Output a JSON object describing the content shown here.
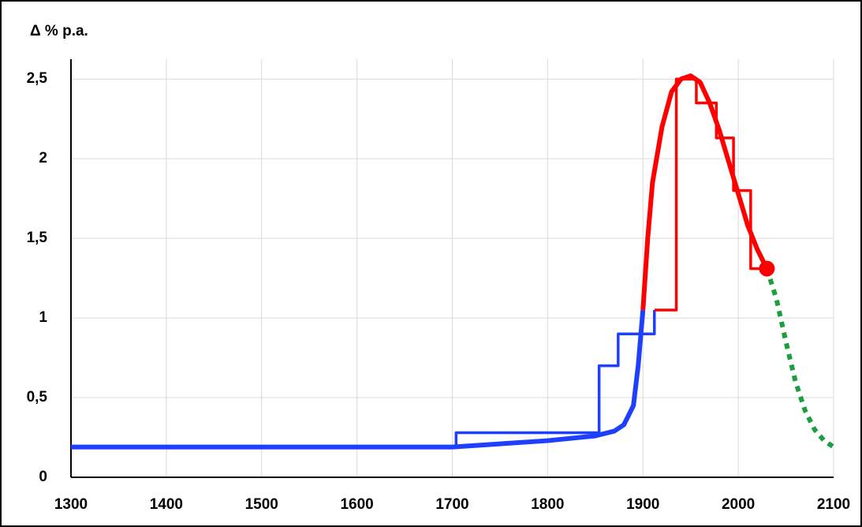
{
  "chart_data": {
    "type": "line",
    "ylabel": "Δ % p.a.",
    "xlim": [
      1300,
      2100
    ],
    "xticks": [
      1300,
      1400,
      1500,
      1600,
      1700,
      1800,
      1900,
      2000,
      2100
    ],
    "ylim": [
      0,
      2.6
    ],
    "yticks": [
      0,
      {
        "value": 0.5,
        "label": "0,5"
      },
      1,
      {
        "value": 1.5,
        "label": "1,5"
      },
      2,
      {
        "value": 2.5,
        "label": "2,5"
      }
    ],
    "grid": true,
    "series": [
      {
        "color": "#1f3fff",
        "x": [
          1300,
          1700,
          1750,
          1800,
          1850,
          1870,
          1880,
          1890,
          1895,
          1900
        ],
        "values": [
          0.19,
          0.19,
          0.21,
          0.23,
          0.26,
          0.29,
          0.33,
          0.45,
          0.7,
          1.05
        ]
      },
      {
        "color": "#1f3fff",
        "x": [
          1300,
          1704,
          1704,
          1854,
          1854,
          1874,
          1874,
          1912,
          1912
        ],
        "values": [
          0.19,
          0.19,
          0.28,
          0.28,
          0.7,
          0.7,
          0.9,
          0.9,
          1.05
        ]
      },
      {
        "color": "#ff0000",
        "x": [
          1912,
          1935,
          1935,
          1956,
          1956,
          1977,
          1977,
          1995,
          1995,
          2013,
          2013,
          2030
        ],
        "values": [
          1.05,
          1.05,
          2.5,
          2.5,
          2.35,
          2.35,
          2.13,
          2.13,
          1.8,
          1.8,
          1.31,
          1.31
        ]
      },
      {
        "color": "#ff0000",
        "x": [
          1900,
          1905,
          1910,
          1920,
          1930,
          1940,
          1950,
          1960,
          1970,
          1980,
          1990,
          2000,
          2010,
          2020,
          2030
        ],
        "values": [
          1.05,
          1.5,
          1.85,
          2.2,
          2.42,
          2.5,
          2.52,
          2.48,
          2.35,
          2.18,
          1.98,
          1.78,
          1.58,
          1.43,
          1.31
        ]
      },
      {
        "color": "#1a9e3f",
        "dash": "dotted",
        "x": [
          2030,
          2040,
          2050,
          2060,
          2070,
          2080,
          2090,
          2100
        ],
        "values": [
          1.31,
          1.12,
          0.85,
          0.6,
          0.42,
          0.3,
          0.23,
          0.19
        ]
      },
      {
        "color": "#ff0000",
        "marker": true,
        "x": [
          2030
        ],
        "values": [
          1.31
        ]
      }
    ]
  }
}
